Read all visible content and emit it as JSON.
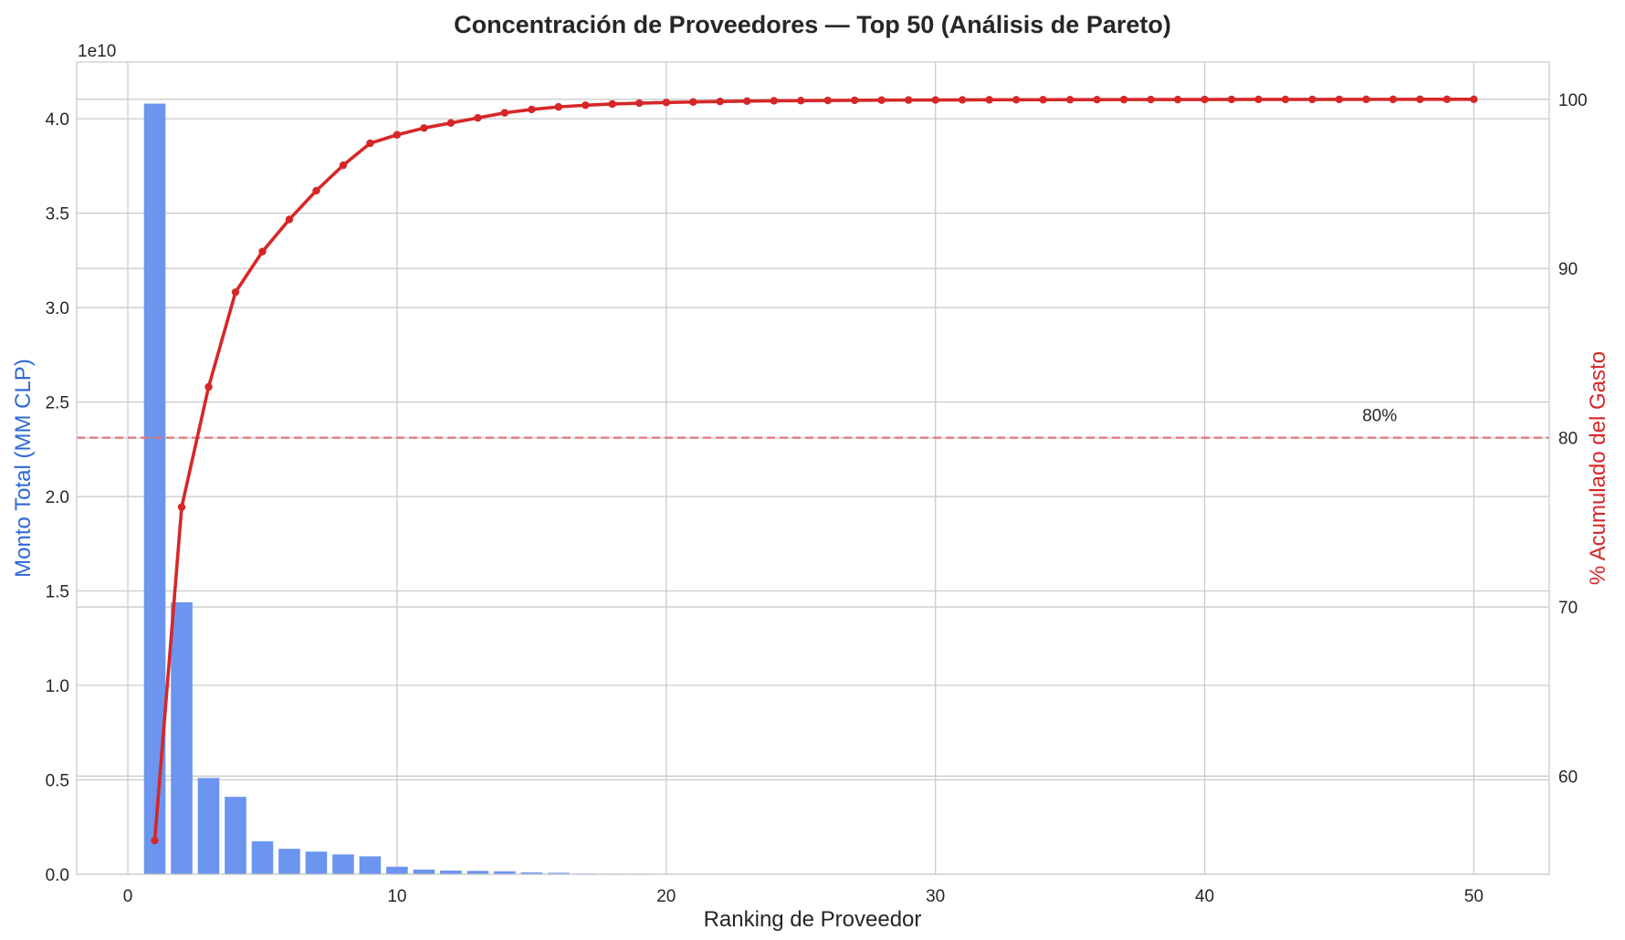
{
  "chart_data": {
    "type": "bar",
    "title": "Concentración de Proveedores — Top 50 (Análisis de Pareto)",
    "xlabel": "Ranking de Proveedor",
    "ylabel": "Monto Total (MM CLP)",
    "y2label": "% Acumulado del Gasto",
    "y_offset_text": "1e10",
    "xlim": [
      -1.9,
      52.8
    ],
    "ylim": [
      0,
      4.3
    ],
    "y2lim": [
      54.2,
      102.2
    ],
    "x_ticks": [
      "0",
      "10",
      "20",
      "30",
      "40",
      "50"
    ],
    "y_ticks": [
      "0.0",
      "0.5",
      "1.0",
      "1.5",
      "2.0",
      "2.5",
      "3.0",
      "3.5",
      "4.0"
    ],
    "y2_ticks": [
      "60",
      "70",
      "80",
      "90",
      "100"
    ],
    "grid": true,
    "colors": {
      "bars": "#6b95ee",
      "line": "#d62728",
      "left_axis": "#2d68d6",
      "right_axis": "#d62728",
      "threshold": "#e57373"
    },
    "threshold": {
      "value": 80,
      "label": "80%"
    },
    "series": [
      {
        "name": "Monto Total (MM CLP)",
        "type": "bar",
        "x": [
          1,
          2,
          3,
          4,
          5,
          6,
          7,
          8,
          9,
          10,
          11,
          12,
          13,
          14,
          15,
          16,
          17,
          18,
          19,
          20,
          21,
          22,
          23,
          24,
          25,
          26,
          27,
          28,
          29,
          30,
          31,
          32,
          33,
          34,
          35,
          36,
          37,
          38,
          39,
          40,
          41,
          42,
          43,
          44,
          45,
          46,
          47,
          48,
          49,
          50
        ],
        "values": [
          4.08,
          1.44,
          0.51,
          0.41,
          0.175,
          0.135,
          0.12,
          0.105,
          0.095,
          0.04,
          0.025,
          0.02,
          0.018,
          0.016,
          0.01,
          0.008,
          0.004,
          0.003,
          0.003,
          0.002,
          0.002,
          0.002,
          0.0015,
          0.0015,
          0.001,
          0.001,
          0.001,
          0.001,
          0.001,
          0.001,
          0.0008,
          0.0008,
          0.0007,
          0.0007,
          0.0006,
          0.0006,
          0.0005,
          0.0005,
          0.0005,
          0.0004,
          0.0004,
          0.0004,
          0.0003,
          0.0003,
          0.0003,
          0.0003,
          0.0002,
          0.0002,
          0.0002,
          0.0002
        ]
      },
      {
        "name": "% Acumulado del Gasto",
        "type": "line",
        "x": [
          1,
          2,
          3,
          4,
          5,
          6,
          7,
          8,
          9,
          10,
          11,
          12,
          13,
          14,
          15,
          16,
          17,
          18,
          19,
          20,
          21,
          22,
          23,
          24,
          25,
          26,
          27,
          28,
          29,
          30,
          31,
          32,
          33,
          34,
          35,
          36,
          37,
          38,
          39,
          40,
          41,
          42,
          43,
          44,
          45,
          46,
          47,
          48,
          49,
          50
        ],
        "values": [
          56.2,
          75.9,
          83.0,
          88.6,
          91.0,
          92.9,
          94.6,
          96.1,
          97.4,
          97.9,
          98.3,
          98.6,
          98.9,
          99.2,
          99.4,
          99.55,
          99.65,
          99.72,
          99.77,
          99.81,
          99.84,
          99.87,
          99.89,
          99.91,
          99.92,
          99.93,
          99.94,
          99.95,
          99.955,
          99.96,
          99.965,
          99.97,
          99.972,
          99.975,
          99.978,
          99.98,
          99.982,
          99.984,
          99.986,
          99.988,
          99.99,
          99.991,
          99.992,
          99.993,
          99.994,
          99.995,
          99.996,
          99.997,
          99.998,
          100.0
        ]
      }
    ]
  }
}
